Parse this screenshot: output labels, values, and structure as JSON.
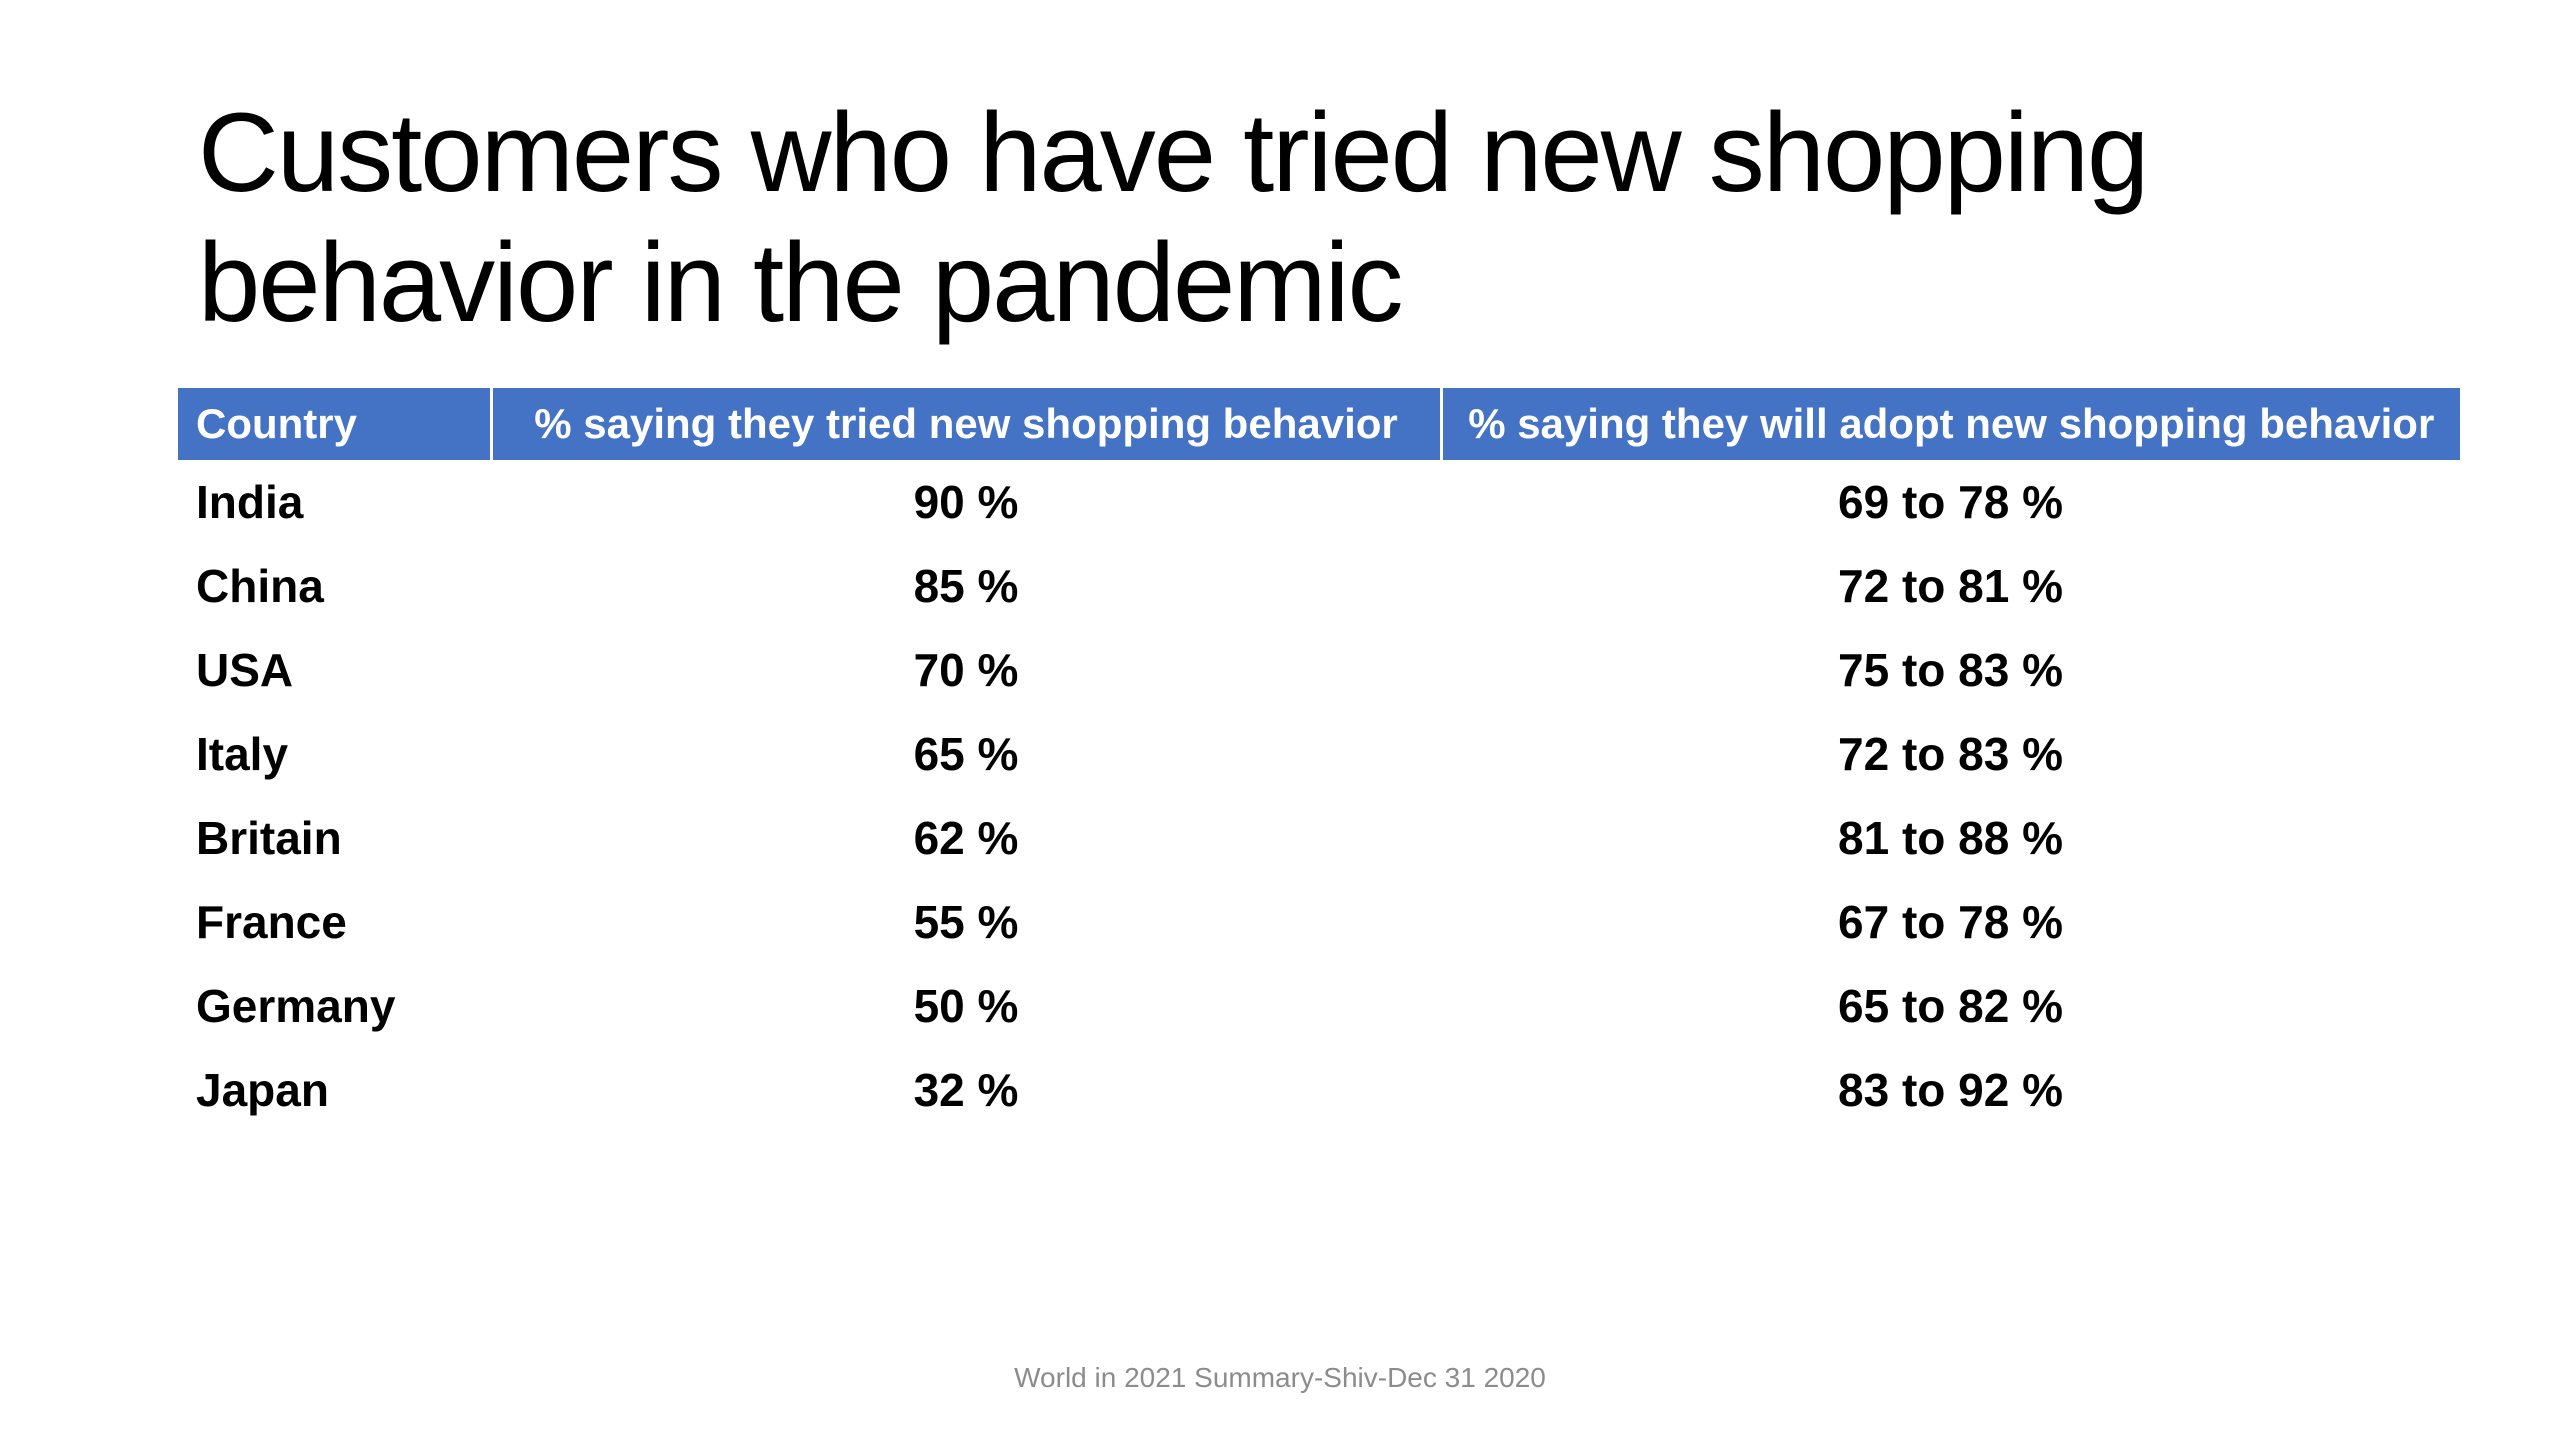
{
  "slide": {
    "title_lines": [
      "Customers who have tried new shopping",
      "behavior in the pandemic"
    ],
    "footer": "World in 2021 Summary-Shiv-Dec 31 2020"
  },
  "table": {
    "header_bg": "#4472c4",
    "columns": [
      "Country",
      "% saying they tried new shopping behavior",
      "% saying they will adopt new shopping behavior"
    ],
    "rows": [
      [
        "India",
        "90 %",
        "69 to 78 %"
      ],
      [
        "China",
        "85 %",
        "72 to 81 %"
      ],
      [
        "USA",
        "70 %",
        "75 to 83 %"
      ],
      [
        "Italy",
        "65 %",
        "72 to 83 %"
      ],
      [
        "Britain",
        "62 %",
        "81 to 88 %"
      ],
      [
        "France",
        "55 %",
        "67 to 78 %"
      ],
      [
        "Germany",
        "50 %",
        "65 to 82 %"
      ],
      [
        "Japan",
        "32 %",
        "83 to 92 %"
      ]
    ]
  }
}
